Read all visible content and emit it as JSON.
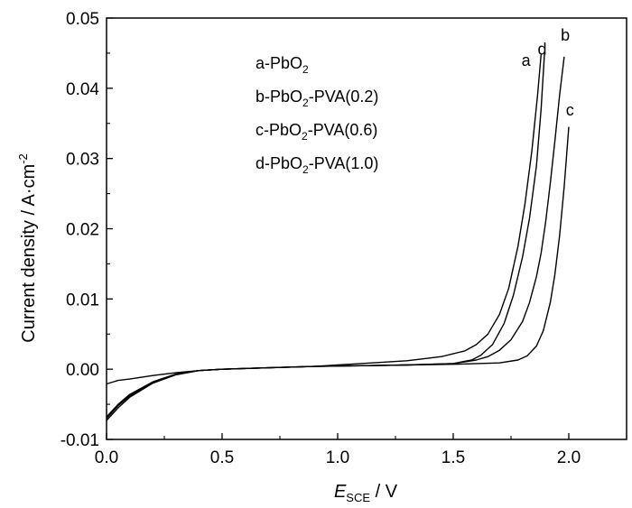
{
  "chart_data": {
    "type": "line",
    "x_axis": {
      "label_main": "E",
      "label_sub": "SCE",
      "label_rest": " / V",
      "range": [
        0.0,
        2.25
      ],
      "ticks": [
        0.0,
        0.5,
        1.0,
        1.5,
        2.0
      ],
      "tick_labels": [
        "0.0",
        "0.5",
        "1.0",
        "1.5",
        "2.0"
      ]
    },
    "y_axis": {
      "label_main": "Current density / A·cm",
      "label_sup": "-2",
      "range": [
        -0.01,
        0.05
      ],
      "ticks": [
        -0.01,
        0.0,
        0.01,
        0.02,
        0.03,
        0.04,
        0.05
      ],
      "tick_labels": [
        "-0.01",
        "0.00",
        "0.01",
        "0.02",
        "0.03",
        "0.04",
        "0.05"
      ]
    },
    "grid": false,
    "legend_position": "top-left",
    "legend": [
      {
        "prefix": "a-PbO",
        "sub": "2",
        "suffix": ""
      },
      {
        "prefix": "b-PbO",
        "sub": "2",
        "suffix": "-PVA(0.2)"
      },
      {
        "prefix": "c-PbO",
        "sub": "2",
        "suffix": "-PVA(0.6)"
      },
      {
        "prefix": "d-PbO",
        "sub": "2",
        "suffix": "-PVA(1.0)"
      }
    ],
    "series": [
      {
        "name": "a",
        "x": [
          0.0,
          0.05,
          0.1,
          0.2,
          0.3,
          0.4,
          0.5,
          0.7,
          0.9,
          1.1,
          1.3,
          1.45,
          1.55,
          1.6,
          1.65,
          1.7,
          1.74,
          1.78,
          1.81,
          1.84,
          1.865,
          1.88
        ],
        "y": [
          -0.0021,
          -0.0016,
          -0.0014,
          -0.0009,
          -0.0005,
          -0.0002,
          0.0,
          0.0002,
          0.0004,
          0.0008,
          0.0012,
          0.0018,
          0.0026,
          0.0035,
          0.005,
          0.0078,
          0.0115,
          0.0175,
          0.0235,
          0.031,
          0.039,
          0.0448
        ]
      },
      {
        "name": "b",
        "x": [
          0.0,
          0.05,
          0.1,
          0.2,
          0.3,
          0.4,
          0.5,
          0.7,
          0.9,
          1.1,
          1.3,
          1.5,
          1.6,
          1.65,
          1.7,
          1.75,
          1.8,
          1.83,
          1.86,
          1.88,
          1.9,
          1.92,
          1.94,
          1.96,
          1.98
        ],
        "y": [
          -0.0073,
          -0.0055,
          -0.004,
          -0.002,
          -0.0008,
          -0.0002,
          0.0,
          0.0002,
          0.0004,
          0.0005,
          0.0006,
          0.0008,
          0.0013,
          0.0018,
          0.0027,
          0.0042,
          0.0068,
          0.0095,
          0.0132,
          0.0165,
          0.021,
          0.0265,
          0.0325,
          0.039,
          0.0445
        ]
      },
      {
        "name": "c",
        "x": [
          0.0,
          0.05,
          0.1,
          0.2,
          0.3,
          0.4,
          0.5,
          0.7,
          0.9,
          1.1,
          1.3,
          1.5,
          1.7,
          1.78,
          1.82,
          1.86,
          1.89,
          1.92,
          1.94,
          1.96,
          1.98,
          2.0
        ],
        "y": [
          -0.007,
          -0.0052,
          -0.0038,
          -0.0019,
          -0.0007,
          -0.0002,
          0.0,
          0.0002,
          0.0004,
          0.0005,
          0.0006,
          0.0007,
          0.0009,
          0.0013,
          0.0019,
          0.0033,
          0.0055,
          0.0095,
          0.0135,
          0.019,
          0.026,
          0.0345
        ]
      },
      {
        "name": "d",
        "x": [
          0.0,
          0.05,
          0.1,
          0.2,
          0.3,
          0.4,
          0.5,
          0.7,
          0.9,
          1.1,
          1.3,
          1.5,
          1.58,
          1.62,
          1.67,
          1.72,
          1.76,
          1.8,
          1.83,
          1.86,
          1.88,
          1.895
        ],
        "y": [
          -0.0068,
          -0.005,
          -0.0036,
          -0.0018,
          -0.0007,
          -0.0002,
          0.0,
          0.0002,
          0.0004,
          0.0005,
          0.0006,
          0.0008,
          0.0013,
          0.002,
          0.0035,
          0.0065,
          0.0105,
          0.016,
          0.0215,
          0.029,
          0.037,
          0.045
        ]
      }
    ],
    "curve_labels": [
      {
        "text": "a",
        "x": 1.815,
        "y": 0.0432
      },
      {
        "text": "d",
        "x": 1.885,
        "y": 0.0448
      },
      {
        "text": "b",
        "x": 1.985,
        "y": 0.0468
      },
      {
        "text": "c",
        "x": 2.005,
        "y": 0.0361
      }
    ]
  }
}
